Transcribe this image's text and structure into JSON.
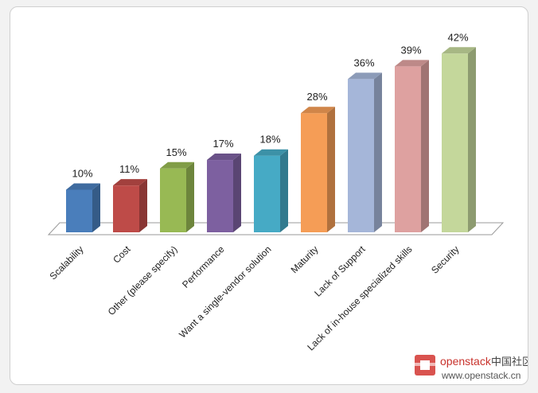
{
  "chart_data": {
    "type": "bar",
    "style": "3d-column",
    "categories": [
      "Scalability",
      "Cost",
      "Other (please specify)",
      "Performance",
      "Want a single-vendor solution",
      "Maturity",
      "Lack of Support",
      "Lack of in-house specialized skills",
      "Security"
    ],
    "values": [
      10,
      11,
      15,
      17,
      18,
      28,
      36,
      39,
      42
    ],
    "value_labels": [
      "10%",
      "11%",
      "15%",
      "17%",
      "18%",
      "28%",
      "36%",
      "39%",
      "42%"
    ],
    "colors": [
      "#4a7ebb",
      "#be4b48",
      "#98b954",
      "#7d60a0",
      "#46aac5",
      "#f59d56",
      "#a5b6d9",
      "#dea1a0",
      "#c4d79b"
    ],
    "ylim": [
      0,
      45
    ],
    "grid": false,
    "legend": "none"
  },
  "watermark": {
    "brand": "openstack",
    "brand_cn": "中国社区",
    "url": "www.openstack.cn",
    "logo_color": "#d9534f"
  }
}
